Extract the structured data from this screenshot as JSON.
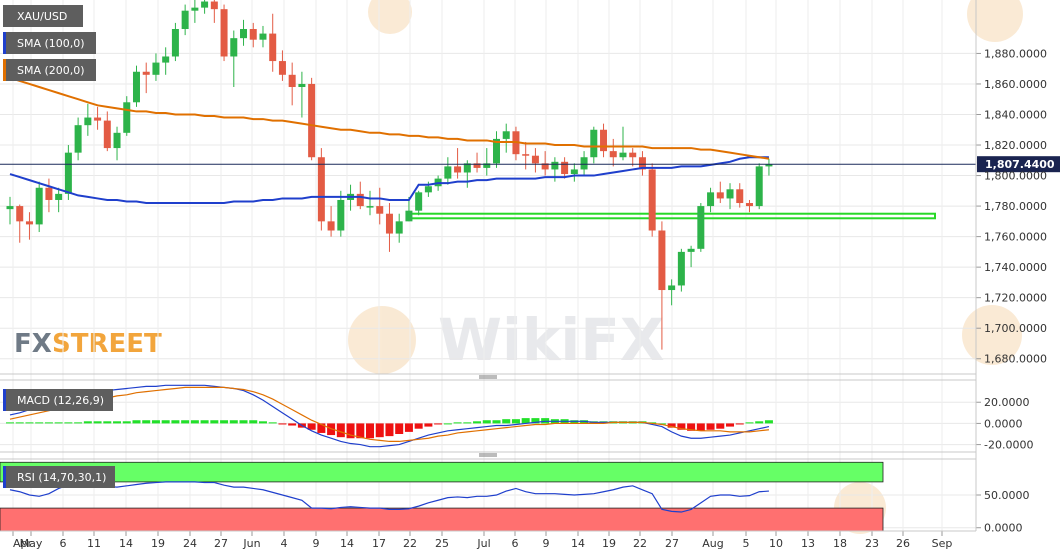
{
  "labels": {
    "symbol": "XAU/USD",
    "sma100": "SMA (100,0)",
    "sma200": "SMA (200,0)",
    "macd": "MACD (12,26,9)",
    "rsi": "RSI (14,70,30,1)",
    "price": "1,807.4400",
    "watermark_fx": "FX",
    "watermark_street": "STREET",
    "watermark_wikifx": "WikiFX"
  },
  "colors": {
    "bull": "#2db34a",
    "bear": "#e35b44",
    "sma100": "#1f3fcc",
    "sma200": "#e07000",
    "macd_line": "#1f3fcc",
    "signal_line": "#e07000",
    "hist_pos": "#22e02a",
    "hist_neg": "#ee1111",
    "rsi_line": "#1f3fcc",
    "rsi_ob": "#66ff66",
    "rsi_os": "#ff7070",
    "support_zone": "#27d827",
    "label_bg": "#5e5e5e",
    "sma100_swatch": "#1f3fcc",
    "sma200_swatch": "#e07000"
  },
  "chart_data": [
    {
      "type": "candlestick",
      "title": "XAU/USD",
      "ylim": [
        1670,
        1915
      ],
      "y_ticks": [
        1680,
        1700,
        1720,
        1740,
        1760,
        1780,
        1800,
        1820,
        1840,
        1860,
        1880
      ],
      "y_tick_labels": [
        "1,680.0000",
        "1,700.0000",
        "1,720.0000",
        "1,740.0000",
        "1,760.0000",
        "1,780.0000",
        "1,800.0000",
        "1,820.0000",
        "1,840.0000",
        "1,860.0000",
        "1,880.0000"
      ],
      "last_price": 1807.44,
      "support_zone": [
        1772,
        1775
      ],
      "x_ticks": [
        "Apr",
        "May",
        "6",
        "11",
        "14",
        "19",
        "24",
        "27",
        "Jun",
        "4",
        "9",
        "14",
        "17",
        "22",
        "25",
        "Jul",
        "6",
        "9",
        "14",
        "19",
        "22",
        "27",
        "Aug",
        "5",
        "10",
        "13",
        "18",
        "23",
        "26",
        "Sep"
      ],
      "candles": [
        {
          "o": 1778,
          "h": 1786,
          "l": 1768,
          "c": 1780
        },
        {
          "o": 1780,
          "h": 1781,
          "l": 1756,
          "c": 1770
        },
        {
          "o": 1770,
          "h": 1776,
          "l": 1758,
          "c": 1768
        },
        {
          "o": 1768,
          "h": 1796,
          "l": 1763,
          "c": 1792
        },
        {
          "o": 1792,
          "h": 1798,
          "l": 1776,
          "c": 1784
        },
        {
          "o": 1784,
          "h": 1792,
          "l": 1776,
          "c": 1788
        },
        {
          "o": 1788,
          "h": 1820,
          "l": 1784,
          "c": 1815
        },
        {
          "o": 1815,
          "h": 1838,
          "l": 1810,
          "c": 1833
        },
        {
          "o": 1833,
          "h": 1847,
          "l": 1826,
          "c": 1838
        },
        {
          "o": 1838,
          "h": 1845,
          "l": 1830,
          "c": 1836
        },
        {
          "o": 1836,
          "h": 1842,
          "l": 1816,
          "c": 1818
        },
        {
          "o": 1818,
          "h": 1832,
          "l": 1810,
          "c": 1828
        },
        {
          "o": 1828,
          "h": 1852,
          "l": 1826,
          "c": 1848
        },
        {
          "o": 1848,
          "h": 1872,
          "l": 1845,
          "c": 1868
        },
        {
          "o": 1868,
          "h": 1874,
          "l": 1854,
          "c": 1866
        },
        {
          "o": 1866,
          "h": 1880,
          "l": 1862,
          "c": 1874
        },
        {
          "o": 1874,
          "h": 1884,
          "l": 1866,
          "c": 1878
        },
        {
          "o": 1878,
          "h": 1900,
          "l": 1875,
          "c": 1896
        },
        {
          "o": 1896,
          "h": 1912,
          "l": 1892,
          "c": 1908
        },
        {
          "o": 1908,
          "h": 1915,
          "l": 1900,
          "c": 1910
        },
        {
          "o": 1910,
          "h": 1918,
          "l": 1906,
          "c": 1914
        },
        {
          "o": 1914,
          "h": 1916,
          "l": 1900,
          "c": 1909
        },
        {
          "o": 1909,
          "h": 1912,
          "l": 1875,
          "c": 1878
        },
        {
          "o": 1878,
          "h": 1895,
          "l": 1858,
          "c": 1890
        },
        {
          "o": 1890,
          "h": 1902,
          "l": 1885,
          "c": 1896
        },
        {
          "o": 1896,
          "h": 1900,
          "l": 1884,
          "c": 1889
        },
        {
          "o": 1889,
          "h": 1898,
          "l": 1884,
          "c": 1893
        },
        {
          "o": 1893,
          "h": 1906,
          "l": 1868,
          "c": 1875
        },
        {
          "o": 1875,
          "h": 1882,
          "l": 1862,
          "c": 1866
        },
        {
          "o": 1866,
          "h": 1874,
          "l": 1846,
          "c": 1858
        },
        {
          "o": 1858,
          "h": 1868,
          "l": 1838,
          "c": 1860
        },
        {
          "o": 1860,
          "h": 1864,
          "l": 1810,
          "c": 1812
        },
        {
          "o": 1812,
          "h": 1818,
          "l": 1764,
          "c": 1770
        },
        {
          "o": 1770,
          "h": 1780,
          "l": 1760,
          "c": 1764
        },
        {
          "o": 1764,
          "h": 1790,
          "l": 1760,
          "c": 1784
        },
        {
          "o": 1784,
          "h": 1794,
          "l": 1777,
          "c": 1788
        },
        {
          "o": 1788,
          "h": 1796,
          "l": 1778,
          "c": 1780
        },
        {
          "o": 1780,
          "h": 1790,
          "l": 1774,
          "c": 1780
        },
        {
          "o": 1780,
          "h": 1792,
          "l": 1768,
          "c": 1775
        },
        {
          "o": 1775,
          "h": 1782,
          "l": 1750,
          "c": 1762
        },
        {
          "o": 1762,
          "h": 1775,
          "l": 1756,
          "c": 1770
        },
        {
          "o": 1770,
          "h": 1786,
          "l": 1770,
          "c": 1777
        },
        {
          "o": 1777,
          "h": 1790,
          "l": 1774,
          "c": 1789
        },
        {
          "o": 1789,
          "h": 1796,
          "l": 1786,
          "c": 1793
        },
        {
          "o": 1793,
          "h": 1800,
          "l": 1790,
          "c": 1798
        },
        {
          "o": 1798,
          "h": 1812,
          "l": 1794,
          "c": 1806
        },
        {
          "o": 1806,
          "h": 1818,
          "l": 1798,
          "c": 1802
        },
        {
          "o": 1802,
          "h": 1810,
          "l": 1792,
          "c": 1808
        },
        {
          "o": 1808,
          "h": 1815,
          "l": 1802,
          "c": 1805
        },
        {
          "o": 1805,
          "h": 1818,
          "l": 1800,
          "c": 1808
        },
        {
          "o": 1808,
          "h": 1829,
          "l": 1805,
          "c": 1824
        },
        {
          "o": 1824,
          "h": 1834,
          "l": 1815,
          "c": 1829
        },
        {
          "o": 1829,
          "h": 1832,
          "l": 1810,
          "c": 1814
        },
        {
          "o": 1814,
          "h": 1822,
          "l": 1804,
          "c": 1813
        },
        {
          "o": 1813,
          "h": 1818,
          "l": 1802,
          "c": 1808
        },
        {
          "o": 1808,
          "h": 1816,
          "l": 1800,
          "c": 1804
        },
        {
          "o": 1804,
          "h": 1812,
          "l": 1796,
          "c": 1809
        },
        {
          "o": 1809,
          "h": 1812,
          "l": 1798,
          "c": 1801
        },
        {
          "o": 1801,
          "h": 1808,
          "l": 1796,
          "c": 1804
        },
        {
          "o": 1804,
          "h": 1816,
          "l": 1800,
          "c": 1812
        },
        {
          "o": 1812,
          "h": 1832,
          "l": 1808,
          "c": 1830
        },
        {
          "o": 1830,
          "h": 1834,
          "l": 1812,
          "c": 1816
        },
        {
          "o": 1816,
          "h": 1824,
          "l": 1806,
          "c": 1812
        },
        {
          "o": 1812,
          "h": 1832,
          "l": 1810,
          "c": 1815
        },
        {
          "o": 1815,
          "h": 1818,
          "l": 1806,
          "c": 1812
        },
        {
          "o": 1812,
          "h": 1816,
          "l": 1800,
          "c": 1804
        },
        {
          "o": 1804,
          "h": 1808,
          "l": 1760,
          "c": 1764
        },
        {
          "o": 1764,
          "h": 1770,
          "l": 1686,
          "c": 1725
        },
        {
          "o": 1725,
          "h": 1732,
          "l": 1715,
          "c": 1728
        },
        {
          "o": 1728,
          "h": 1752,
          "l": 1724,
          "c": 1750
        },
        {
          "o": 1750,
          "h": 1754,
          "l": 1740,
          "c": 1752
        },
        {
          "o": 1752,
          "h": 1782,
          "l": 1750,
          "c": 1780
        },
        {
          "o": 1780,
          "h": 1792,
          "l": 1776,
          "c": 1789
        },
        {
          "o": 1789,
          "h": 1796,
          "l": 1782,
          "c": 1785
        },
        {
          "o": 1785,
          "h": 1795,
          "l": 1778,
          "c": 1791
        },
        {
          "o": 1791,
          "h": 1795,
          "l": 1779,
          "c": 1782
        },
        {
          "o": 1782,
          "h": 1784,
          "l": 1776,
          "c": 1780
        },
        {
          "o": 1780,
          "h": 1808,
          "l": 1778,
          "c": 1806
        },
        {
          "o": 1806,
          "h": 1811,
          "l": 1800,
          "c": 1807.44
        }
      ],
      "series": [
        {
          "name": "SMA (100,0)",
          "values": [
            1801,
            1799,
            1797,
            1795,
            1793,
            1791,
            1789,
            1787,
            1786,
            1785,
            1784,
            1784,
            1783,
            1783,
            1782,
            1782,
            1782,
            1782,
            1782,
            1782,
            1782,
            1782,
            1782,
            1783,
            1783,
            1783,
            1784,
            1784,
            1785,
            1785,
            1785,
            1786,
            1786,
            1786,
            1786,
            1786,
            1786,
            1785,
            1785,
            1784,
            1784,
            1784,
            1794,
            1794,
            1795,
            1795,
            1796,
            1796,
            1797,
            1797,
            1798,
            1798,
            1798,
            1798,
            1798,
            1799,
            1799,
            1799,
            1800,
            1800,
            1800,
            1801,
            1802,
            1803,
            1804,
            1805,
            1805,
            1805,
            1805,
            1806,
            1806,
            1806,
            1807,
            1808,
            1809,
            1811,
            1812,
            1812,
            1812
          ]
        },
        {
          "name": "SMA (200,0)",
          "values": [
            1864,
            1862,
            1860,
            1858,
            1856,
            1854,
            1852,
            1850,
            1848,
            1846,
            1845,
            1844,
            1843,
            1842,
            1842,
            1841,
            1841,
            1840,
            1840,
            1840,
            1839,
            1839,
            1838,
            1838,
            1838,
            1837,
            1837,
            1836,
            1836,
            1835,
            1834,
            1833,
            1832,
            1831,
            1830,
            1830,
            1829,
            1828,
            1828,
            1827,
            1827,
            1826,
            1826,
            1825,
            1825,
            1824,
            1824,
            1823,
            1823,
            1823,
            1822,
            1822,
            1822,
            1821,
            1821,
            1821,
            1820,
            1820,
            1820,
            1819,
            1819,
            1819,
            1819,
            1819,
            1819,
            1819,
            1818,
            1818,
            1818,
            1818,
            1818,
            1817,
            1817,
            1816,
            1815,
            1814,
            1813,
            1812,
            1811
          ]
        }
      ]
    },
    {
      "type": "bar",
      "title": "MACD (12,26,9)",
      "ylim": [
        -27,
        41
      ],
      "y_ticks": [
        -20,
        0,
        20
      ],
      "y_tick_labels": [
        "-20.0000",
        "0.0000",
        "20.0000"
      ],
      "histogram": [
        1,
        1,
        1,
        1,
        1,
        1,
        1,
        1,
        2,
        2,
        2,
        2,
        2,
        3,
        3,
        3,
        3,
        3,
        3,
        3,
        3,
        3,
        3,
        3,
        3,
        3,
        2,
        1,
        -1,
        -2,
        -4,
        -6,
        -9,
        -11,
        -13,
        -14,
        -14,
        -14,
        -13,
        -12,
        -10,
        -8,
        -5,
        -3,
        -1,
        0,
        1,
        1,
        2,
        3,
        3,
        4,
        4,
        5,
        5,
        5,
        4,
        4,
        3,
        3,
        2,
        2,
        2,
        2,
        2,
        2,
        1,
        0,
        -4,
        -6,
        -7,
        -7,
        -6,
        -5,
        -3,
        -1,
        1,
        2,
        3
      ],
      "series": [
        {
          "name": "MACD",
          "values": [
            8,
            10,
            13,
            16,
            18,
            20,
            22,
            25,
            28,
            30,
            31,
            32,
            33,
            34,
            35,
            35,
            36,
            36,
            36,
            36,
            36,
            35,
            34,
            33,
            31,
            27,
            22,
            16,
            10,
            4,
            -2,
            -7,
            -11,
            -14,
            -17,
            -19,
            -20,
            -22,
            -22,
            -21,
            -20,
            -17,
            -14,
            -11,
            -9,
            -7,
            -6,
            -5,
            -4,
            -3,
            -2,
            -2,
            -1,
            0,
            1,
            2,
            2,
            2,
            2,
            2,
            1,
            1,
            1,
            1,
            1,
            1,
            -1,
            -3,
            -8,
            -12,
            -14,
            -14,
            -13,
            -12,
            -11,
            -9,
            -7,
            -5,
            -3
          ]
        },
        {
          "name": "Signal",
          "values": [
            4,
            6,
            8,
            10,
            12,
            14,
            16,
            18,
            20,
            22,
            24,
            26,
            27,
            29,
            30,
            31,
            32,
            33,
            34,
            34,
            34,
            34,
            34,
            33,
            32,
            30,
            27,
            23,
            18,
            13,
            8,
            3,
            -1,
            -5,
            -8,
            -11,
            -13,
            -15,
            -16,
            -17,
            -17,
            -16,
            -15,
            -14,
            -12,
            -11,
            -9,
            -8,
            -7,
            -6,
            -5,
            -4,
            -3,
            -2,
            -1,
            -1,
            0,
            0,
            0,
            0,
            0,
            0,
            1,
            1,
            1,
            1,
            0,
            -1,
            -3,
            -5,
            -6,
            -7,
            -7,
            -7,
            -8,
            -8,
            -8,
            -7,
            -6
          ]
        }
      ]
    },
    {
      "type": "line",
      "title": "RSI (14,70,30,1)",
      "ylim": [
        -5,
        105
      ],
      "y_ticks": [
        0,
        50
      ],
      "y_tick_labels": [
        "0.0000",
        "50.0000"
      ],
      "overbought": 70,
      "oversold": 30,
      "series": [
        {
          "name": "RSI",
          "values": [
            58,
            55,
            50,
            48,
            52,
            60,
            65,
            66,
            67,
            66,
            63,
            62,
            64,
            66,
            68,
            69,
            70,
            70,
            70,
            70,
            69,
            69,
            65,
            62,
            62,
            60,
            58,
            54,
            50,
            46,
            42,
            30,
            30,
            29,
            31,
            32,
            31,
            30,
            30,
            28,
            28,
            29,
            33,
            38,
            42,
            46,
            47,
            46,
            48,
            48,
            50,
            56,
            60,
            55,
            52,
            52,
            52,
            51,
            50,
            51,
            52,
            55,
            58,
            62,
            64,
            58,
            52,
            28,
            25,
            24,
            28,
            38,
            48,
            50,
            50,
            48,
            49,
            55,
            56
          ]
        }
      ]
    }
  ]
}
